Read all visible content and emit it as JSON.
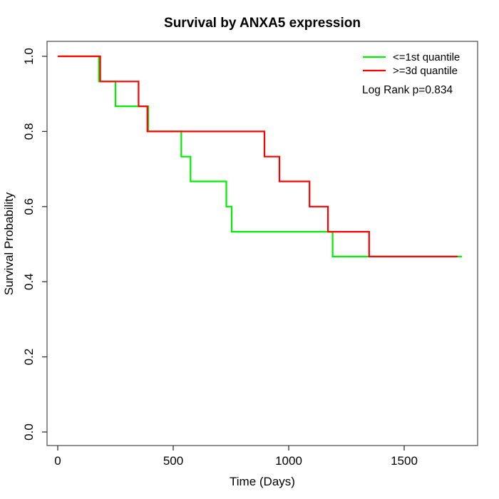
{
  "chart_data": {
    "type": "line",
    "subtype": "kaplan-meier-step",
    "title": "Survival by ANXA5 expression",
    "xlabel": "Time (Days)",
    "ylabel": "Survival Probability",
    "xlim": [
      0,
      1750
    ],
    "ylim": [
      0.0,
      1.0
    ],
    "x_ticks": [
      0,
      500,
      1000,
      1500
    ],
    "y_ticks": [
      0.0,
      0.2,
      0.4,
      0.6,
      0.8,
      1.0
    ],
    "grid": false,
    "legend_position": "top-right",
    "annotation": "Log Rank p=0.834",
    "series": [
      {
        "name": "<=1st quantile",
        "color": "#00ee00",
        "event_times": [
          178,
          250,
          392,
          535,
          575,
          730,
          753,
          1190
        ],
        "survival_levels": [
          1.0,
          0.933,
          0.867,
          0.8,
          0.733,
          0.667,
          0.6,
          0.533,
          0.467
        ],
        "end_time": 1750
      },
      {
        "name": ">=3d quantile",
        "color": "#ff0000",
        "event_times": [
          184,
          350,
          388,
          895,
          960,
          1090,
          1170,
          1348
        ],
        "survival_levels": [
          1.0,
          0.933,
          0.867,
          0.8,
          0.733,
          0.667,
          0.6,
          0.533,
          0.467
        ],
        "end_time": 1732
      }
    ]
  }
}
